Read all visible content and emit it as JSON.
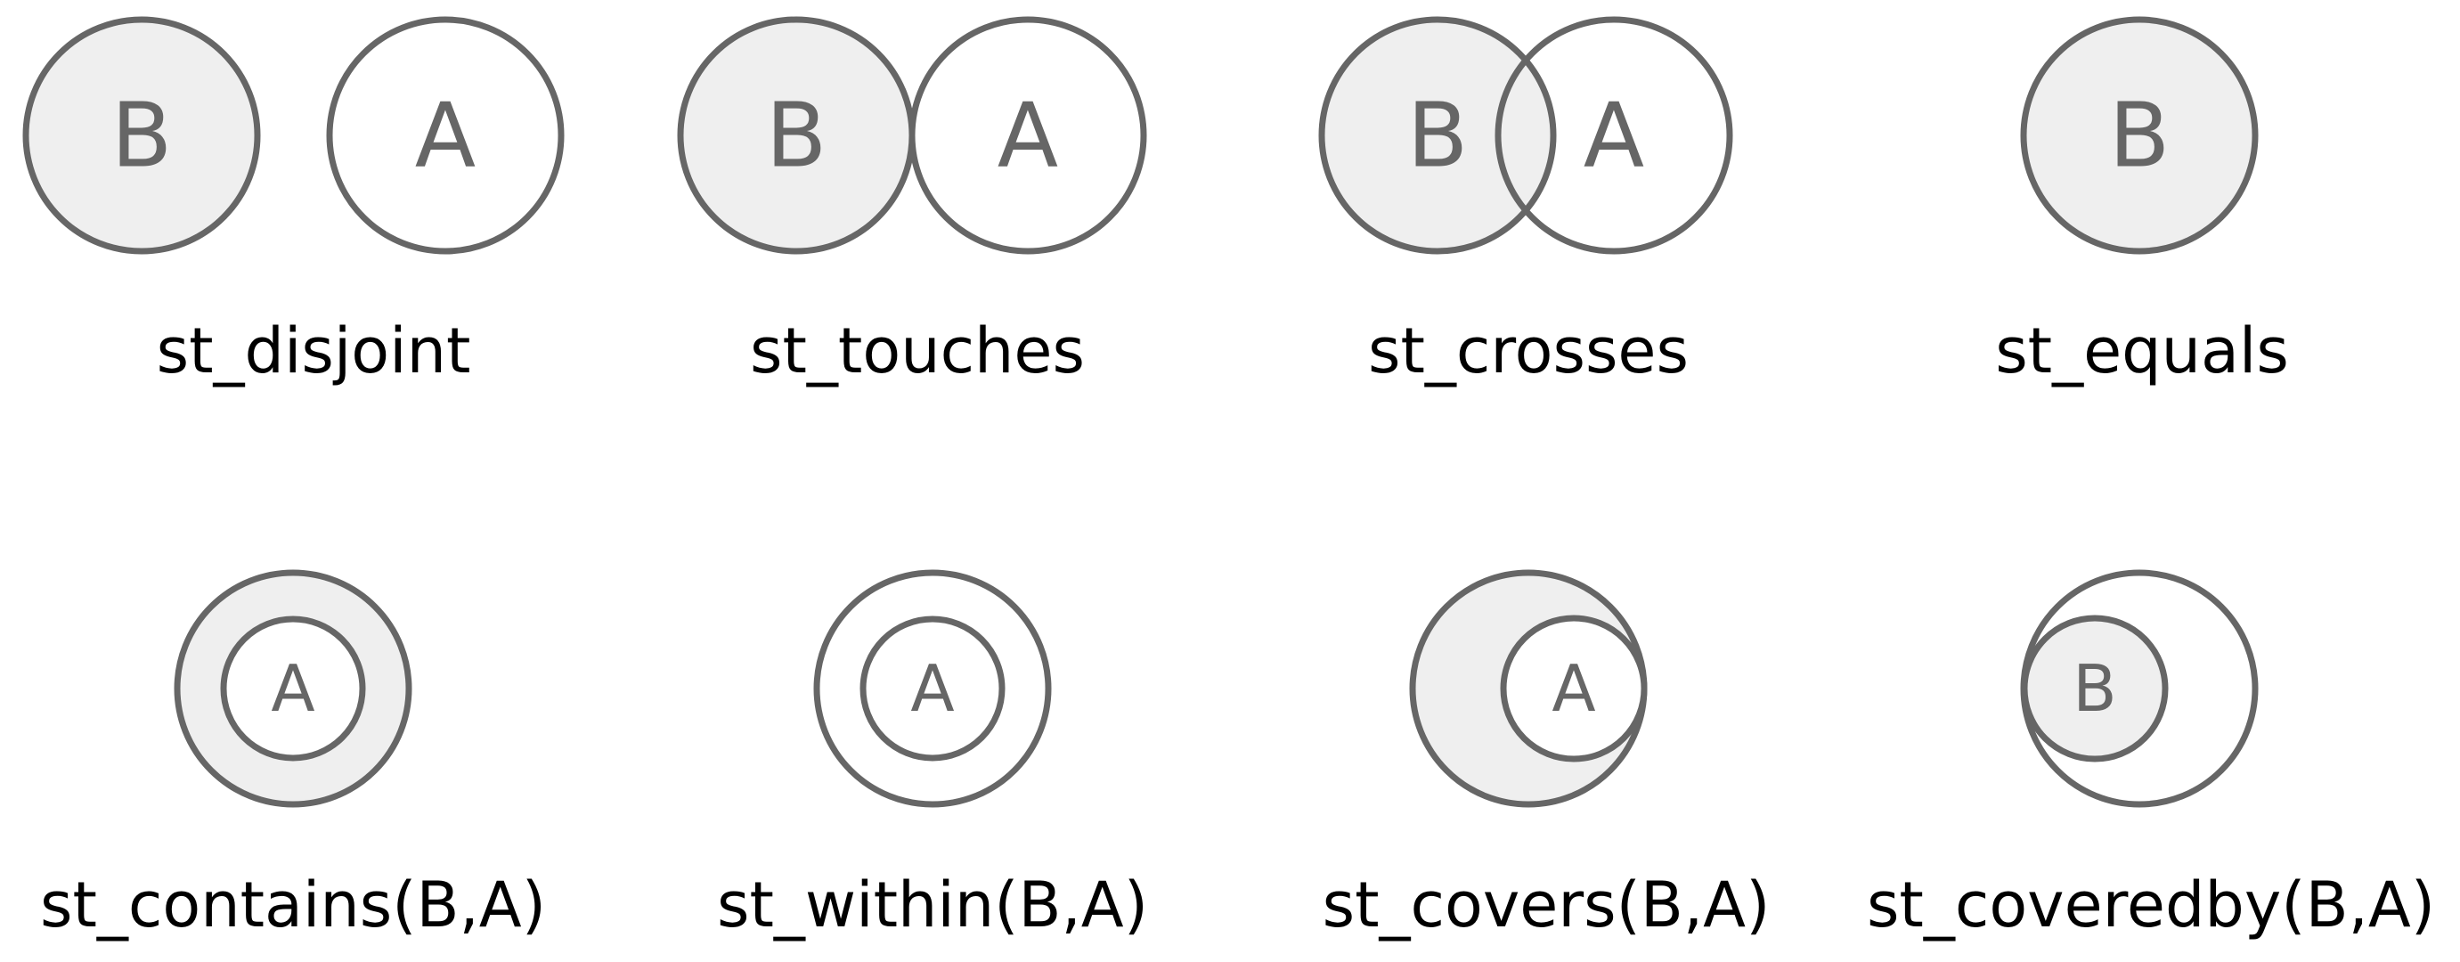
{
  "panels": [
    {
      "caption": "st_disjoint",
      "label_b": "B",
      "label_a": "A"
    },
    {
      "caption": "st_touches",
      "label_b": "B",
      "label_a": "A"
    },
    {
      "caption": "st_crosses",
      "label_b": "B",
      "label_a": "A"
    },
    {
      "caption": "st_equals",
      "label_b": "B"
    },
    {
      "caption": "st_contains(B,A)",
      "label_a": "A"
    },
    {
      "caption": "st_within(B,A)",
      "label_a": "A"
    },
    {
      "caption": "st_covers(B,A)",
      "label_a": "A"
    },
    {
      "caption": "st_coveredby(B,A)",
      "label_b": "B"
    }
  ],
  "colors": {
    "stroke": "#666666",
    "shaded": "#efefef",
    "unshaded": "#ffffff",
    "caption": "#000000"
  }
}
